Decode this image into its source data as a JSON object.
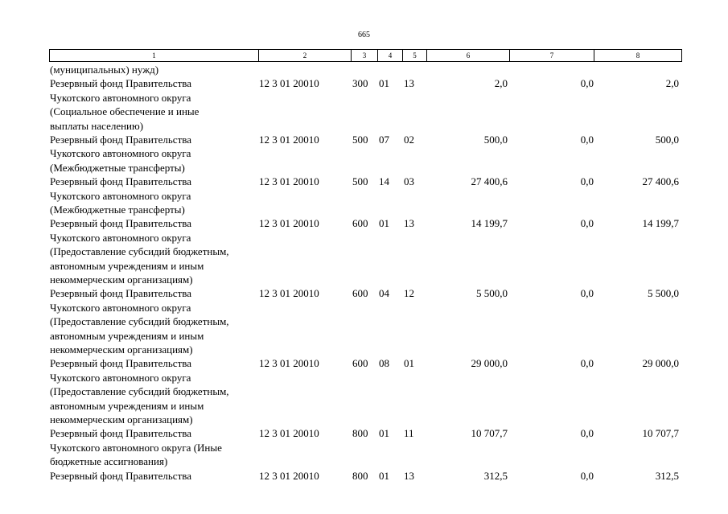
{
  "page_number": "665",
  "header": [
    "1",
    "2",
    "3",
    "4",
    "5",
    "6",
    "7",
    "8"
  ],
  "continuation": "(муниципальных) нужд)",
  "rows": [
    {
      "lines": [
        "Резервный фонд Правительства",
        "Чукотского автономного округа",
        "(Социальное обеспечение и иные",
        "выплаты населению)"
      ],
      "code": "12 3 01 20010",
      "c3": "300",
      "c4": "01",
      "c5": "13",
      "c6": "2,0",
      "c7": "0,0",
      "c8": "2,0"
    },
    {
      "lines": [
        "Резервный фонд Правительства",
        "Чукотского автономного округа",
        "(Межбюджетные трансферты)"
      ],
      "code": "12 3 01 20010",
      "c3": "500",
      "c4": "07",
      "c5": "02",
      "c6": "500,0",
      "c7": "0,0",
      "c8": "500,0"
    },
    {
      "lines": [
        "Резервный фонд Правительства",
        "Чукотского автономного округа",
        "(Межбюджетные трансферты)"
      ],
      "code": "12 3 01 20010",
      "c3": "500",
      "c4": "14",
      "c5": "03",
      "c6": "27 400,6",
      "c7": "0,0",
      "c8": "27 400,6"
    },
    {
      "lines": [
        "Резервный фонд Правительства",
        "Чукотского автономного округа",
        "(Предоставление субсидий бюджетным,",
        "автономным учреждениям и иным",
        "некоммерческим организациям)"
      ],
      "code": "12 3 01 20010",
      "c3": "600",
      "c4": "01",
      "c5": "13",
      "c6": "14 199,7",
      "c7": "0,0",
      "c8": "14 199,7"
    },
    {
      "lines": [
        "Резервный фонд Правительства",
        "Чукотского автономного округа",
        "(Предоставление субсидий бюджетным,",
        "автономным учреждениям и иным",
        "некоммерческим организациям)"
      ],
      "code": "12 3 01 20010",
      "c3": "600",
      "c4": "04",
      "c5": "12",
      "c6": "5 500,0",
      "c7": "0,0",
      "c8": "5 500,0"
    },
    {
      "lines": [
        "Резервный фонд Правительства",
        "Чукотского автономного округа",
        "(Предоставление субсидий бюджетным,",
        "автономным учреждениям и иным",
        "некоммерческим организациям)"
      ],
      "code": "12 3 01 20010",
      "c3": "600",
      "c4": "08",
      "c5": "01",
      "c6": "29 000,0",
      "c7": "0,0",
      "c8": "29 000,0"
    },
    {
      "lines": [
        "Резервный фонд Правительства",
        "Чукотского автономного округа (Иные",
        "бюджетные ассигнования)"
      ],
      "code": "12 3 01 20010",
      "c3": "800",
      "c4": "01",
      "c5": "11",
      "c6": "10 707,7",
      "c7": "0,0",
      "c8": "10 707,7"
    },
    {
      "lines": [
        "Резервный фонд Правительства"
      ],
      "code": "12 3 01 20010",
      "c3": "800",
      "c4": "01",
      "c5": "13",
      "c6": "312,5",
      "c7": "0,0",
      "c8": "312,5"
    }
  ]
}
